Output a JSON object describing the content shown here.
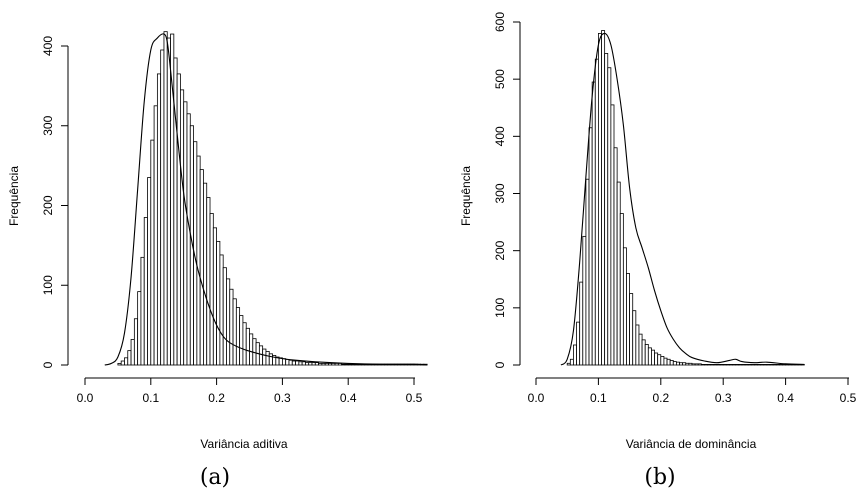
{
  "chart_data": [
    {
      "type": "bar",
      "subtype": "histogram-with-density",
      "caption": "(a)",
      "xlabel": "Variância aditiva",
      "ylabel": "Frequência",
      "xlim": [
        0.0,
        0.5
      ],
      "ylim": [
        0,
        400
      ],
      "x_ticks": [
        0.0,
        0.1,
        0.2,
        0.3,
        0.4,
        0.5
      ],
      "x_tick_labels": [
        "0.0",
        "0.1",
        "0.2",
        "0.3",
        "0.4",
        "0.5"
      ],
      "y_ticks": [
        0,
        100,
        200,
        300,
        400
      ],
      "y_tick_labels": [
        "0",
        "100",
        "200",
        "300",
        "400"
      ],
      "bin_width": 0.005,
      "bin_start": 0.05,
      "values": [
        2,
        5,
        9,
        18,
        32,
        58,
        92,
        135,
        185,
        235,
        282,
        325,
        365,
        395,
        418,
        410,
        415,
        385,
        365,
        345,
        330,
        315,
        300,
        280,
        262,
        245,
        228,
        210,
        190,
        172,
        155,
        138,
        122,
        108,
        95,
        83,
        72,
        62,
        53,
        46,
        39,
        33,
        28,
        24,
        20,
        17,
        14,
        12,
        10,
        9,
        8,
        7,
        6,
        5,
        5,
        4,
        4,
        3,
        3,
        3,
        3,
        2,
        2,
        2,
        2,
        2,
        2,
        2,
        1,
        1,
        1,
        1,
        1,
        1,
        1,
        1,
        1,
        1,
        1,
        1,
        1,
        1,
        1,
        1,
        1,
        1,
        1,
        1,
        1,
        1,
        1,
        1,
        1,
        1
      ],
      "density_x": [
        0.03,
        0.04,
        0.05,
        0.06,
        0.07,
        0.08,
        0.09,
        0.1,
        0.11,
        0.12,
        0.125,
        0.13,
        0.14,
        0.15,
        0.16,
        0.17,
        0.18,
        0.19,
        0.2,
        0.21,
        0.22,
        0.24,
        0.26,
        0.28,
        0.3,
        0.32,
        0.35,
        0.4,
        0.45,
        0.5,
        0.52
      ],
      "density_y": [
        0,
        2,
        10,
        40,
        110,
        220,
        330,
        395,
        410,
        415,
        405,
        370,
        290,
        215,
        165,
        125,
        95,
        70,
        50,
        36,
        28,
        20,
        15,
        11,
        8,
        6,
        4,
        2,
        1,
        1,
        0
      ]
    },
    {
      "type": "bar",
      "subtype": "histogram-with-density",
      "caption": "(b)",
      "xlabel": "Variância de dominância",
      "ylabel": "Frequência",
      "xlim": [
        0.0,
        0.5
      ],
      "ylim": [
        0,
        600
      ],
      "x_ticks": [
        0.0,
        0.1,
        0.2,
        0.3,
        0.4,
        0.5
      ],
      "x_tick_labels": [
        "0.0",
        "0.1",
        "0.2",
        "0.3",
        "0.4",
        "0.5"
      ],
      "y_ticks": [
        0,
        100,
        200,
        300,
        400,
        500,
        600
      ],
      "y_tick_labels": [
        "0",
        "100",
        "200",
        "300",
        "400",
        "500",
        "600"
      ],
      "bin_width": 0.005,
      "bin_start": 0.05,
      "values": [
        3,
        10,
        35,
        75,
        145,
        225,
        325,
        415,
        495,
        535,
        580,
        585,
        545,
        520,
        455,
        380,
        320,
        265,
        205,
        160,
        125,
        95,
        70,
        54,
        44,
        36,
        30,
        26,
        21,
        18,
        15,
        12,
        10,
        8,
        6,
        5,
        4,
        4,
        3,
        3,
        2,
        2,
        2,
        1,
        1,
        1,
        1,
        1,
        1,
        1,
        1,
        1,
        1,
        1,
        1,
        1,
        1,
        1,
        1,
        1,
        1,
        1,
        1,
        1,
        1,
        1,
        1,
        1,
        1,
        1,
        1,
        1,
        1,
        1,
        1,
        1
      ],
      "density_x": [
        0.04,
        0.05,
        0.06,
        0.07,
        0.08,
        0.09,
        0.1,
        0.11,
        0.12,
        0.13,
        0.14,
        0.15,
        0.16,
        0.17,
        0.18,
        0.19,
        0.2,
        0.21,
        0.22,
        0.23,
        0.24,
        0.25,
        0.27,
        0.29,
        0.31,
        0.32,
        0.33,
        0.35,
        0.37,
        0.4,
        0.43
      ],
      "density_y": [
        0,
        10,
        60,
        180,
        330,
        470,
        560,
        580,
        560,
        500,
        420,
        310,
        240,
        205,
        170,
        130,
        95,
        65,
        45,
        30,
        20,
        13,
        7,
        4,
        8,
        10,
        6,
        4,
        5,
        2,
        1
      ]
    }
  ]
}
